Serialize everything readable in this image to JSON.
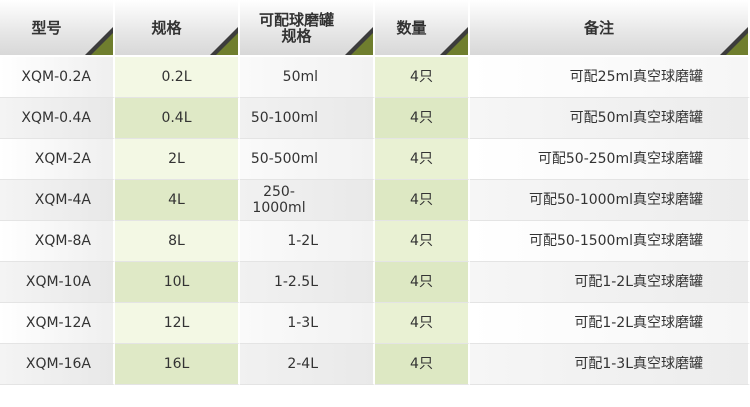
{
  "table": {
    "header": [
      "型号",
      "规格",
      "可配球磨罐\n规格",
      "数量",
      "备注"
    ],
    "rows": [
      [
        "XQM-0.2A",
        "0.2L",
        "50ml",
        "4只",
        "可配25ml真空球磨罐"
      ],
      [
        "XQM-0.4A",
        "0.4L",
        "50-100ml",
        "4只",
        "可配50ml真空球磨罐"
      ],
      [
        "XQM-2A",
        "2L",
        "50-500ml",
        "4只",
        "可配50-250ml真空球磨罐"
      ],
      [
        "XQM-4A",
        "4L",
        "250-1000ml",
        "4只",
        "可配50-1000ml真空球磨罐"
      ],
      [
        "XQM-8A",
        "8L",
        "1-2L",
        "4只",
        "可配50-1500ml真空球磨罐"
      ],
      [
        "XQM-10A",
        "10L",
        "1-2.5L",
        "4只",
        "可配1-2L真空球磨罐"
      ],
      [
        "XQM-12A",
        "12L",
        "1-3L",
        "4只",
        "可配1-2L真空球磨罐"
      ],
      [
        "XQM-16A",
        "16L",
        "2-4L",
        "4只",
        "可配1-3L真空球磨罐"
      ]
    ]
  }
}
